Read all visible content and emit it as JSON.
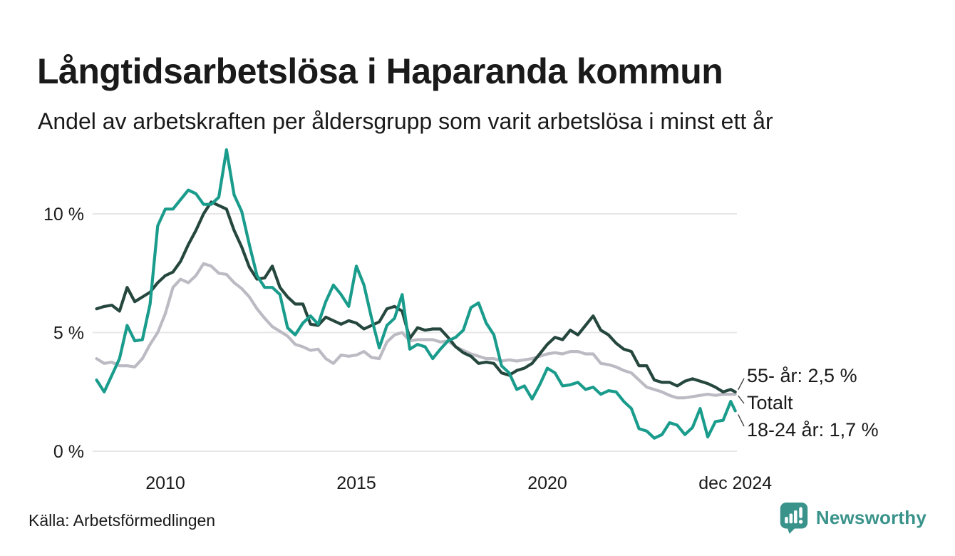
{
  "chart_data": {
    "type": "line",
    "title": "Långtidsarbetslösa i Haparanda kommun",
    "subtitle": "Andel av arbetskraften per åldersgrupp som varit arbetslösa i minst ett år",
    "source": "Källa: Arbetsförmedlingen",
    "xlabel": "",
    "ylabel": "",
    "y_unit": "%",
    "grid": "horizontal",
    "legend": "end-of-line-labels",
    "xlim": [
      2008.1,
      2025.1
    ],
    "ylim": [
      0,
      13.5
    ],
    "y_ticks": [
      {
        "value": 0,
        "label": "0 %"
      },
      {
        "value": 5,
        "label": "5 %"
      },
      {
        "value": 10,
        "label": "10 %"
      }
    ],
    "x_ticks": [
      {
        "year": 2010,
        "label": "2010"
      },
      {
        "year": 2015,
        "label": "2015"
      },
      {
        "year": 2020,
        "label": "2020"
      },
      {
        "year": 2024.92,
        "label": "dec 2024"
      }
    ],
    "x": [
      2008.2,
      2008.4,
      2008.6,
      2008.8,
      2009.0,
      2009.2,
      2009.4,
      2009.6,
      2009.8,
      2010.0,
      2010.2,
      2010.4,
      2010.6,
      2010.8,
      2011.0,
      2011.2,
      2011.4,
      2011.6,
      2011.8,
      2012.0,
      2012.2,
      2012.4,
      2012.6,
      2012.8,
      2013.0,
      2013.2,
      2013.4,
      2013.6,
      2013.8,
      2014.0,
      2014.2,
      2014.4,
      2014.6,
      2014.8,
      2015.0,
      2015.2,
      2015.4,
      2015.6,
      2015.8,
      2016.0,
      2016.2,
      2016.4,
      2016.6,
      2016.8,
      2017.0,
      2017.2,
      2017.4,
      2017.6,
      2017.8,
      2018.0,
      2018.2,
      2018.4,
      2018.6,
      2018.8,
      2019.0,
      2019.2,
      2019.4,
      2019.6,
      2019.8,
      2020.0,
      2020.2,
      2020.4,
      2020.6,
      2020.8,
      2021.0,
      2021.2,
      2021.4,
      2021.6,
      2021.8,
      2022.0,
      2022.2,
      2022.4,
      2022.6,
      2022.8,
      2023.0,
      2023.2,
      2023.4,
      2023.6,
      2023.8,
      2024.0,
      2024.2,
      2024.4,
      2024.6,
      2024.8,
      2024.92
    ],
    "series": [
      {
        "id": "55plus",
        "name": "55- år",
        "end_label": "55- år: 2,5 %",
        "end_value": "2,5 %",
        "color": "#25473D",
        "values": [
          6.0,
          6.1,
          6.15,
          5.9,
          6.9,
          6.3,
          6.5,
          6.7,
          7.1,
          7.4,
          7.55,
          8.0,
          8.7,
          9.3,
          10.0,
          10.5,
          10.35,
          10.2,
          9.3,
          8.6,
          7.75,
          7.25,
          7.3,
          7.8,
          6.9,
          6.5,
          6.2,
          6.2,
          5.35,
          5.3,
          5.65,
          5.5,
          5.35,
          5.5,
          5.4,
          5.15,
          5.3,
          5.45,
          6.0,
          6.1,
          5.9,
          4.75,
          5.2,
          5.1,
          5.15,
          5.15,
          4.8,
          4.4,
          4.15,
          4.0,
          3.7,
          3.75,
          3.7,
          3.3,
          3.2,
          3.4,
          3.5,
          3.7,
          4.1,
          4.5,
          4.8,
          4.7,
          5.1,
          4.9,
          5.3,
          5.7,
          5.1,
          4.9,
          4.55,
          4.3,
          4.2,
          3.6,
          3.6,
          3.0,
          2.9,
          2.9,
          2.75,
          2.95,
          3.05,
          2.95,
          2.85,
          2.7,
          2.5,
          2.6,
          2.5
        ]
      },
      {
        "id": "total",
        "name": "Totalt",
        "end_label": "Totalt",
        "end_value": "",
        "color": "#BCBAC3",
        "values": [
          3.9,
          3.7,
          3.75,
          3.6,
          3.6,
          3.55,
          3.9,
          4.5,
          5.0,
          5.8,
          6.9,
          7.25,
          7.1,
          7.4,
          7.9,
          7.8,
          7.5,
          7.45,
          7.1,
          6.85,
          6.5,
          6.0,
          5.6,
          5.25,
          5.05,
          4.85,
          4.5,
          4.4,
          4.25,
          4.3,
          3.9,
          3.7,
          4.05,
          4.0,
          4.05,
          4.2,
          3.95,
          3.9,
          4.6,
          4.9,
          5.0,
          4.65,
          4.7,
          4.7,
          4.7,
          4.6,
          4.65,
          4.4,
          4.25,
          4.1,
          4.0,
          3.9,
          3.9,
          3.8,
          3.85,
          3.8,
          3.85,
          3.9,
          4.0,
          4.1,
          4.15,
          4.1,
          4.2,
          4.2,
          4.1,
          4.1,
          3.7,
          3.65,
          3.55,
          3.4,
          3.3,
          3.0,
          2.7,
          2.6,
          2.5,
          2.35,
          2.25,
          2.25,
          2.3,
          2.35,
          2.4,
          2.35,
          2.4,
          2.4,
          2.4
        ]
      },
      {
        "id": "18-24",
        "name": "18-24 år",
        "end_label": "18-24 år: 1,7 %",
        "end_value": "1,7 %",
        "color": "#1A9C8C",
        "values": [
          3.0,
          2.5,
          3.2,
          3.9,
          5.3,
          4.65,
          4.7,
          6.2,
          9.5,
          10.2,
          10.2,
          10.6,
          11.0,
          10.85,
          10.4,
          10.4,
          10.7,
          12.7,
          10.8,
          10.1,
          8.7,
          7.4,
          6.9,
          6.9,
          6.6,
          5.2,
          4.9,
          5.4,
          5.7,
          5.35,
          6.3,
          7.0,
          6.6,
          6.1,
          7.8,
          7.0,
          5.6,
          4.35,
          5.3,
          5.6,
          6.6,
          4.3,
          4.5,
          4.4,
          3.9,
          4.3,
          4.65,
          4.8,
          5.1,
          6.05,
          6.25,
          5.4,
          4.9,
          3.6,
          3.3,
          2.6,
          2.75,
          2.2,
          2.8,
          3.5,
          3.3,
          2.75,
          2.8,
          2.9,
          2.6,
          2.7,
          2.4,
          2.55,
          2.5,
          2.1,
          1.8,
          0.95,
          0.85,
          0.55,
          0.7,
          1.2,
          1.1,
          0.7,
          1.0,
          1.8,
          0.6,
          1.25,
          1.3,
          2.1,
          1.7
        ]
      }
    ]
  },
  "footer": {
    "brand": "Newsworthy",
    "brand_icon": "newsworthy-speech-bubble-bar-chart-icon"
  },
  "colors": {
    "ink": "#1A1A1A",
    "grid": "#E7E7E7",
    "brand": "#3A938B",
    "leader": "#444444",
    "background": "#FFFFFF"
  }
}
